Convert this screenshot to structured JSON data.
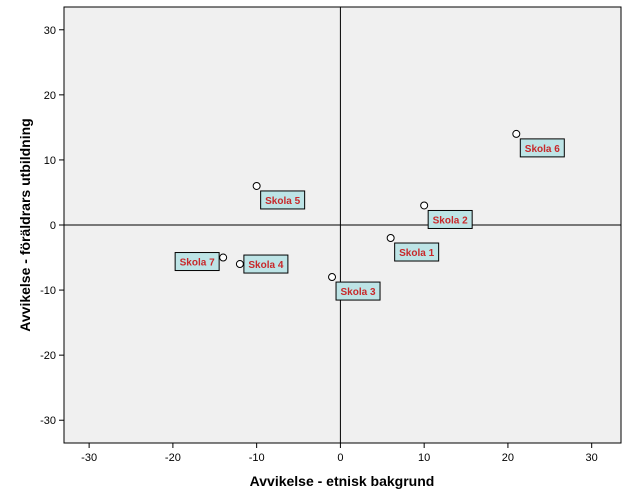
{
  "chart_data": {
    "type": "scatter",
    "title": "",
    "xlabel": "Avvikelse - etnisk bakgrund",
    "ylabel": "Avvikelse - föräldrars utbildning",
    "xlim": [
      -33,
      33.5
    ],
    "ylim": [
      -33.5,
      33.5
    ],
    "xticks": [
      -30,
      -20,
      -10,
      0,
      10,
      20,
      30
    ],
    "yticks": [
      -30,
      -20,
      -10,
      0,
      10,
      20,
      30
    ],
    "reference_lines": {
      "x": 0,
      "y": 0
    },
    "grid": false,
    "plot_background": "#f0f0f0",
    "label_box_color": "#bde4e6",
    "label_text_color": "#c8282a",
    "points": [
      {
        "label": "Skola 1",
        "x": 6,
        "y": -2,
        "label_side": "below-right"
      },
      {
        "label": "Skola 2",
        "x": 10,
        "y": 3,
        "label_side": "below-right"
      },
      {
        "label": "Skola 3",
        "x": -1,
        "y": -8,
        "label_side": "below-right"
      },
      {
        "label": "Skola 4",
        "x": -12,
        "y": -6,
        "label_side": "right"
      },
      {
        "label": "Skola 5",
        "x": -10,
        "y": 6,
        "label_side": "below-right"
      },
      {
        "label": "Skola 6",
        "x": 21,
        "y": 14,
        "label_side": "below-right"
      },
      {
        "label": "Skola 7",
        "x": -14,
        "y": -5,
        "label_side": "left"
      }
    ]
  }
}
